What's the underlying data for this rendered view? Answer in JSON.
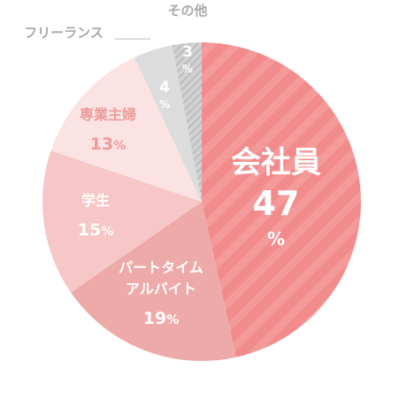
{
  "chart_data": {
    "type": "pie",
    "slices": [
      {
        "label": "会社員",
        "value": 47,
        "percent_sign": "%",
        "color": "#f28b8b",
        "text_color": "#ffffff",
        "hatched": true,
        "label_parts": [
          "会社員"
        ]
      },
      {
        "label": "パートタイム アルバイト",
        "value": 19,
        "percent_sign": "%",
        "color": "#eeaaa9",
        "text_color": "#ffffff",
        "hatched": false,
        "label_parts": [
          "パートタイム",
          "アルバイト"
        ]
      },
      {
        "label": "学生",
        "value": 15,
        "percent_sign": "%",
        "color": "#f7c6c6",
        "text_color": "#ffffff",
        "hatched": false,
        "label_parts": [
          "学生"
        ]
      },
      {
        "label": "専業主婦",
        "value": 13,
        "percent_sign": "%",
        "color": "#fbe3e3",
        "text_color": "#ec9a9a",
        "hatched": false,
        "label_parts": [
          "専業主婦"
        ]
      },
      {
        "label": "フリーランス",
        "value": 4,
        "percent_sign": "%",
        "color": "#dcdcdc",
        "text_color": "#ffffff",
        "hatched": false,
        "label_parts": [
          "フリーランス"
        ]
      },
      {
        "label": "その他",
        "value": 3,
        "percent_sign": "%",
        "color": "#d2d2d2",
        "text_color": "#ffffff",
        "hatched": true,
        "label_parts": [
          "その他"
        ]
      }
    ],
    "outside_label_color": "#aaaaaa"
  }
}
